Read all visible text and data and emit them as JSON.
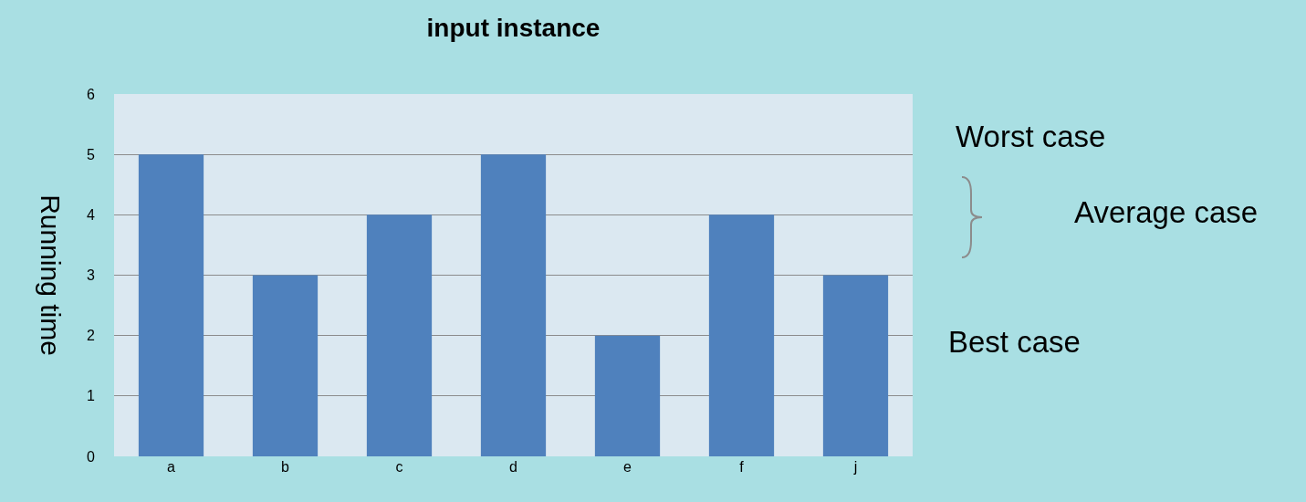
{
  "chart_data": {
    "type": "bar",
    "title": "input instance",
    "ylabel": "Running time",
    "categories": [
      "a",
      "b",
      "c",
      "d",
      "e",
      "f",
      "j"
    ],
    "values": [
      5,
      3,
      4,
      5,
      2,
      4,
      3
    ],
    "color": "#4f81bd",
    "ylim": [
      0,
      6
    ],
    "yticks": [
      0,
      1,
      2,
      3,
      4,
      5,
      6
    ],
    "grid": "y",
    "annotations": [
      "Worst case",
      "Average case",
      "Best case"
    ]
  }
}
